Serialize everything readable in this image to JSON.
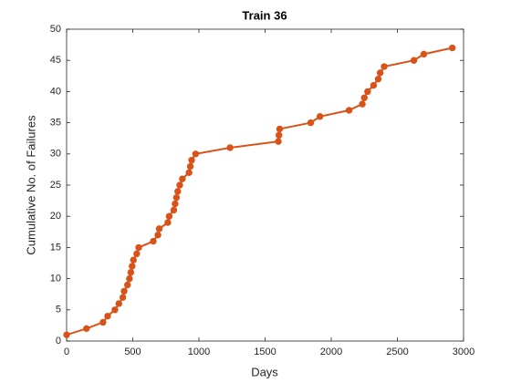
{
  "chart_data": {
    "type": "line",
    "title": "Train 36",
    "x_label": "Days",
    "y_label": "Cumulative No. of Failures",
    "x": [
      0,
      150,
      275,
      310,
      365,
      395,
      425,
      435,
      460,
      475,
      485,
      495,
      505,
      530,
      545,
      655,
      690,
      700,
      765,
      775,
      810,
      820,
      830,
      840,
      855,
      875,
      925,
      935,
      945,
      975,
      1235,
      1600,
      1605,
      1610,
      1845,
      1915,
      2135,
      2235,
      2250,
      2275,
      2320,
      2355,
      2370,
      2400,
      2625,
      2700,
      2915
    ],
    "series": [
      {
        "name": "Train 36",
        "color": "#d95319",
        "values": [
          1,
          2,
          3,
          4,
          5,
          6,
          7,
          8,
          9,
          10,
          11,
          12,
          13,
          14,
          15,
          16,
          17,
          18,
          19,
          20,
          21,
          22,
          23,
          24,
          25,
          26,
          27,
          28,
          29,
          30,
          31,
          32,
          33,
          34,
          35,
          36,
          37,
          38,
          39,
          40,
          41,
          42,
          43,
          44,
          45,
          46,
          47
        ]
      }
    ],
    "xlim": [
      0,
      3000
    ],
    "xticks": [
      0,
      500,
      1000,
      1500,
      2000,
      2500,
      3000
    ],
    "ylim": [
      0,
      50
    ],
    "yticks": [
      0,
      5,
      10,
      15,
      20,
      25,
      30,
      35,
      40,
      45,
      50
    ],
    "markers": true
  }
}
